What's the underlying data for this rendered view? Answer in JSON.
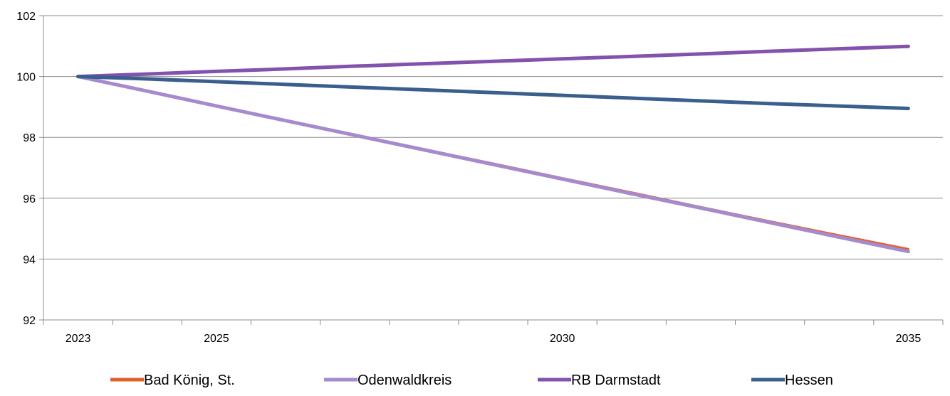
{
  "chart_data": {
    "type": "line",
    "title": "",
    "xlabel": "",
    "ylabel": "",
    "x": [
      2023,
      2024,
      2025,
      2026,
      2027,
      2028,
      2029,
      2030,
      2031,
      2032,
      2033,
      2034,
      2035
    ],
    "x_tick_labels": [
      {
        "value": 2023,
        "label": "2023"
      },
      {
        "value": 2025,
        "label": "2025"
      },
      {
        "value": 2030,
        "label": "2030"
      },
      {
        "value": 2035,
        "label": "2035"
      }
    ],
    "y_ticks": [
      92,
      94,
      96,
      98,
      100,
      102
    ],
    "xlim": [
      2022.5,
      2035.5
    ],
    "ylim": [
      92,
      102
    ],
    "grid": "horizontal",
    "legend_position": "bottom",
    "series": [
      {
        "name": "Bad König, St.",
        "color": "#e0602c",
        "width": 3,
        "values": [
          100,
          99.52,
          99.04,
          98.56,
          98.09,
          97.61,
          97.14,
          96.66,
          96.19,
          95.71,
          95.24,
          94.78,
          94.33
        ]
      },
      {
        "name": "Odenwaldkreis",
        "color": "#a58acd",
        "width": 5,
        "values": [
          100,
          99.52,
          99.03,
          98.55,
          98.07,
          97.59,
          97.11,
          96.63,
          96.15,
          95.68,
          95.2,
          94.72,
          94.25
        ]
      },
      {
        "name": "RB Darmstadt",
        "color": "#8252ad",
        "width": 5,
        "values": [
          100,
          100.08,
          100.17,
          100.25,
          100.34,
          100.42,
          100.5,
          100.58,
          100.66,
          100.74,
          100.83,
          100.91,
          100.99
        ]
      },
      {
        "name": "Hessen",
        "color": "#3a5f8e",
        "width": 5,
        "values": [
          100,
          99.92,
          99.83,
          99.74,
          99.65,
          99.56,
          99.47,
          99.38,
          99.29,
          99.2,
          99.11,
          99.03,
          98.95
        ]
      }
    ]
  }
}
